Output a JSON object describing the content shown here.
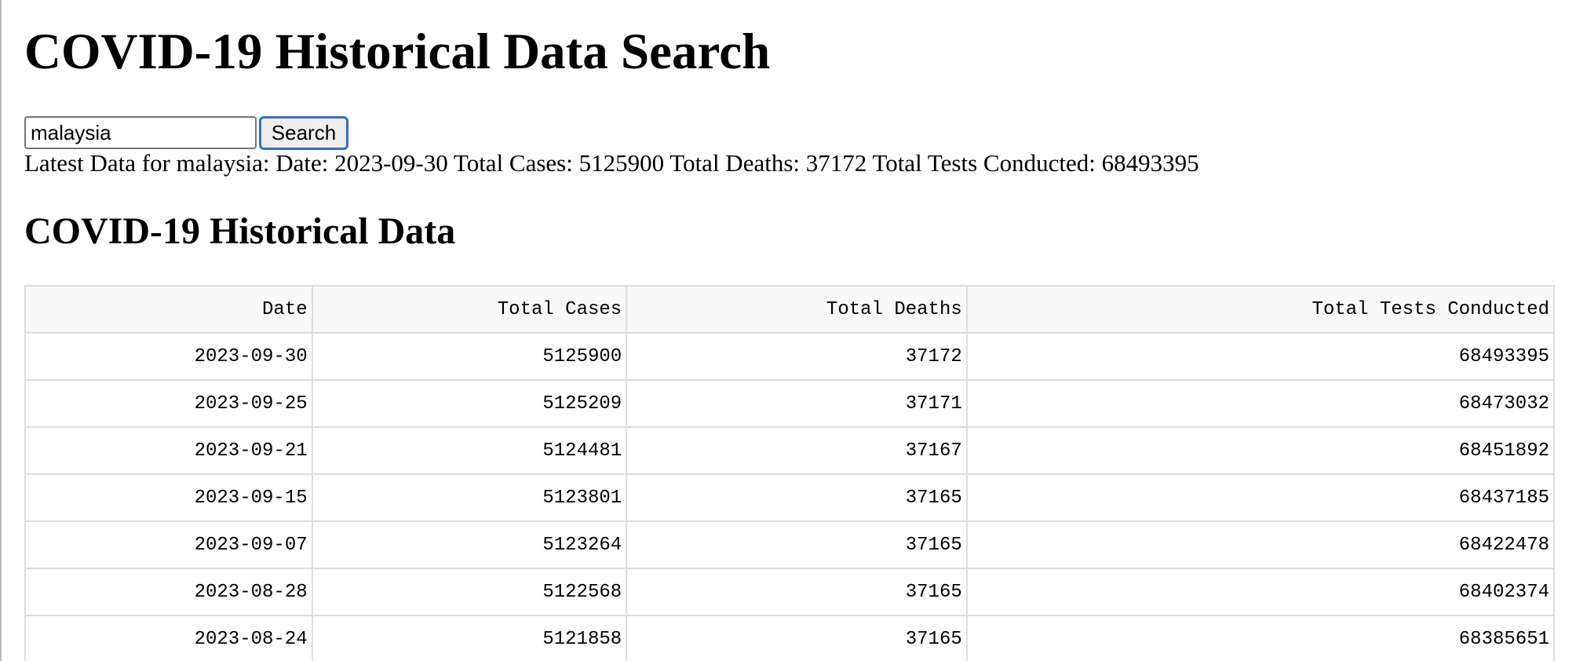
{
  "page": {
    "title": "COVID-19 Historical Data Search"
  },
  "search": {
    "value": "malaysia",
    "button_label": "Search"
  },
  "latest": {
    "text": "Latest Data for malaysia: Date: 2023-09-30 Total Cases: 5125900 Total Deaths: 37172 Total Tests Conducted: 68493395"
  },
  "section": {
    "title": "COVID-19 Historical Data"
  },
  "table": {
    "headers": [
      "Date",
      "Total Cases",
      "Total Deaths",
      "Total Tests Conducted"
    ],
    "rows": [
      [
        "2023-09-30",
        "5125900",
        "37172",
        "68493395"
      ],
      [
        "2023-09-25",
        "5125209",
        "37171",
        "68473032"
      ],
      [
        "2023-09-21",
        "5124481",
        "37167",
        "68451892"
      ],
      [
        "2023-09-15",
        "5123801",
        "37165",
        "68437185"
      ],
      [
        "2023-09-07",
        "5123264",
        "37165",
        "68422478"
      ],
      [
        "2023-08-28",
        "5122568",
        "37165",
        "68402374"
      ],
      [
        "2023-08-24",
        "5121858",
        "37165",
        "68385651"
      ]
    ]
  }
}
